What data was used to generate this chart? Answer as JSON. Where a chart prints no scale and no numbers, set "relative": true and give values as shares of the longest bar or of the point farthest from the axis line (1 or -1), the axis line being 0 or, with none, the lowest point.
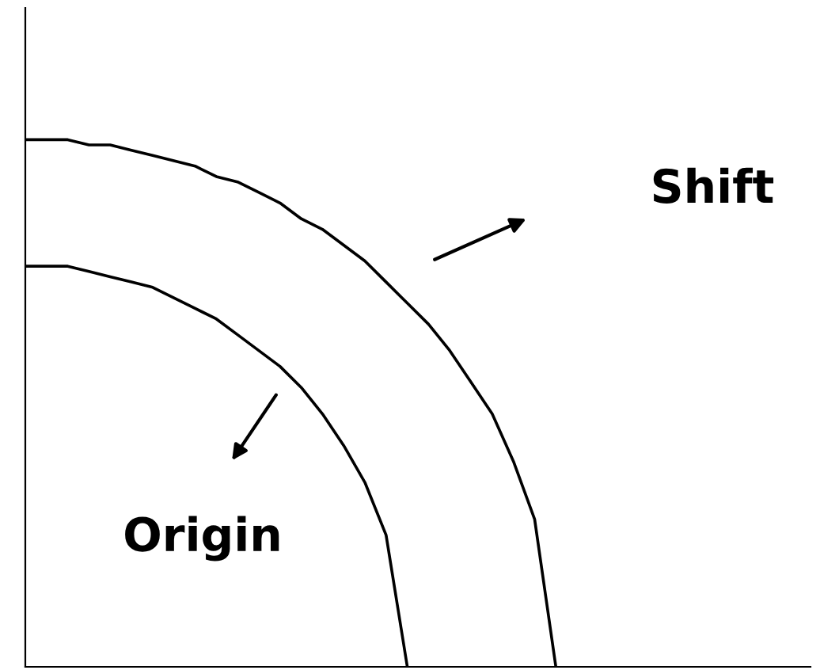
{
  "chart_data": {
    "type": "line",
    "relative": true,
    "grid": false,
    "legend": false,
    "marker": "none",
    "line_style": "solid",
    "categories": [
      null,
      null,
      null,
      null,
      null,
      null,
      null,
      null,
      null,
      null,
      null,
      null,
      null,
      null,
      null,
      null,
      null,
      null,
      null,
      null,
      null,
      null,
      null,
      null,
      null,
      null,
      null,
      null,
      null,
      null,
      null,
      null,
      null,
      null,
      null,
      null,
      null,
      null
    ],
    "series": [
      {
        "color": "#000000",
        "values": [
          1,
          1,
          1,
          0.99,
          0.99,
          0.98,
          0.97,
          0.96,
          0.95,
          0.93,
          0.92,
          0.9,
          0.88,
          0.85,
          0.83,
          0.8,
          0.77,
          0.73,
          0.69,
          0.65,
          0.6,
          0.54,
          0.48,
          0.39,
          0.28,
          0,
          null,
          null,
          null,
          null,
          null,
          null,
          null,
          null,
          null,
          null,
          null,
          null
        ]
      },
      {
        "color": "#000000",
        "values": [
          0.76,
          0.76,
          0.76,
          0.75,
          0.74,
          0.73,
          0.72,
          0.7,
          0.68,
          0.66,
          0.63,
          0.6,
          0.57,
          0.53,
          0.48,
          0.42,
          0.35,
          0.25,
          0,
          null,
          null,
          null,
          null,
          null,
          null,
          null,
          null,
          null,
          null,
          null,
          null,
          null,
          null,
          null,
          null,
          null,
          null,
          null
        ]
      }
    ],
    "annotations": [
      "Shift",
      "Origin"
    ]
  }
}
